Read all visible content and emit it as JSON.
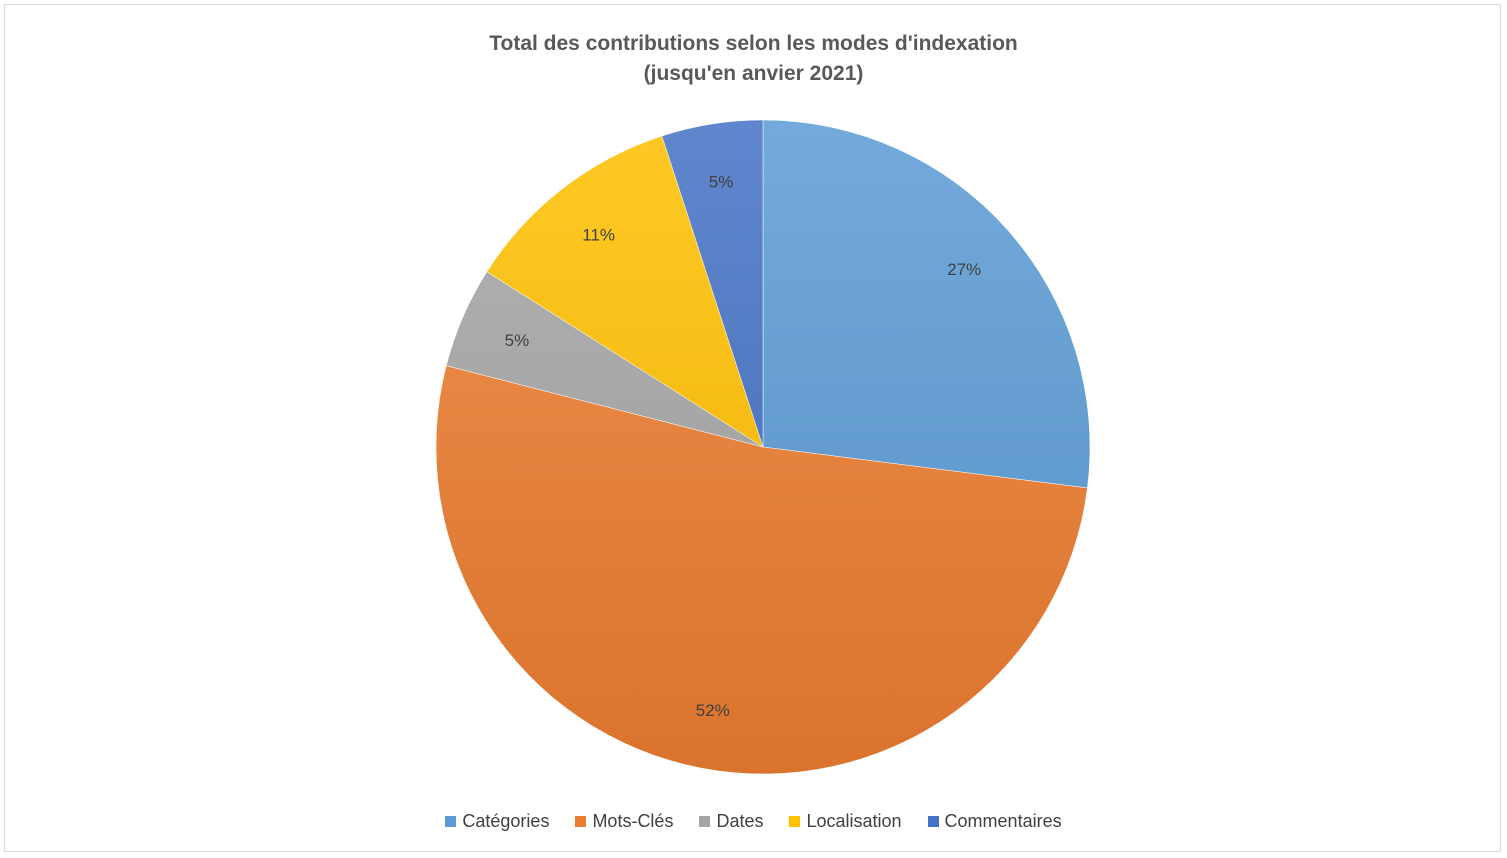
{
  "chart_data": {
    "type": "pie",
    "title": "Total des contributions selon les modes d'indexation",
    "subtitle": "(jusqu'en anvier 2021)",
    "categories": [
      "Catégories",
      "Mots-Clés",
      "Dates",
      "Localisation",
      "Commentaires"
    ],
    "values": [
      27,
      52,
      5,
      11,
      5
    ],
    "value_labels": [
      "27%",
      "52%",
      "5%",
      "11%",
      "5%"
    ],
    "colors": [
      "#5b9bd5",
      "#ed7d31",
      "#a5a5a5",
      "#ffc000",
      "#4472c4"
    ],
    "legend_position": "bottom",
    "start_angle": "12 o'clock, clockwise"
  }
}
